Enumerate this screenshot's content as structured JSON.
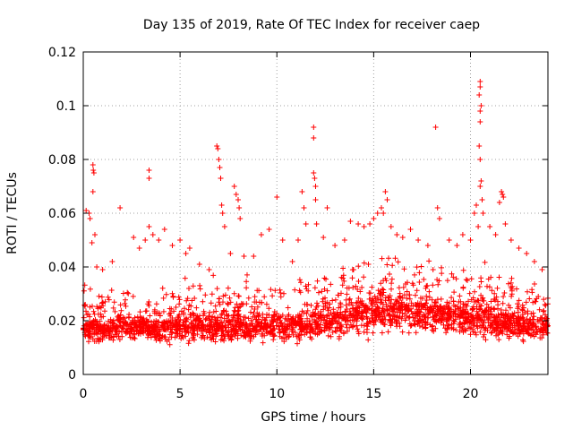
{
  "chart_data": {
    "type": "scatter",
    "title": "Day 135 of 2019, Rate Of TEC Index for receiver caep",
    "xlabel": "GPS time / hours",
    "ylabel": "ROTI / TECUs",
    "xlim": [
      0,
      24
    ],
    "ylim": [
      0,
      0.12
    ],
    "xticks": [
      0,
      5,
      10,
      15,
      20
    ],
    "xtick_labels": [
      "0",
      "5",
      "10",
      "15",
      "20"
    ],
    "yticks": [
      0,
      0.02,
      0.04,
      0.06,
      0.08,
      0.1,
      0.12
    ],
    "ytick_labels": [
      "0",
      "0.02",
      "0.04",
      "0.06",
      "0.08",
      "0.1",
      "0.12"
    ],
    "grid": true,
    "marker": "+",
    "color": "#ff0000",
    "series": [
      {
        "name": "ROTI",
        "points": [
          [
            0.15,
            0.061
          ],
          [
            0.3,
            0.06
          ],
          [
            0.35,
            0.058
          ],
          [
            0.45,
            0.049
          ],
          [
            0.5,
            0.078
          ],
          [
            0.52,
            0.076
          ],
          [
            0.55,
            0.075
          ],
          [
            0.5,
            0.068
          ],
          [
            0.6,
            0.052
          ],
          [
            0.7,
            0.04
          ],
          [
            1.0,
            0.039
          ],
          [
            1.5,
            0.042
          ],
          [
            1.9,
            0.062
          ],
          [
            2.6,
            0.051
          ],
          [
            2.9,
            0.047
          ],
          [
            3.2,
            0.05
          ],
          [
            3.4,
            0.076
          ],
          [
            3.4,
            0.073
          ],
          [
            3.4,
            0.055
          ],
          [
            3.6,
            0.052
          ],
          [
            3.9,
            0.05
          ],
          [
            4.2,
            0.054
          ],
          [
            4.6,
            0.048
          ],
          [
            5.0,
            0.05
          ],
          [
            5.3,
            0.045
          ],
          [
            5.5,
            0.047
          ],
          [
            6.0,
            0.041
          ],
          [
            6.5,
            0.039
          ],
          [
            6.9,
            0.085
          ],
          [
            6.95,
            0.084
          ],
          [
            7.0,
            0.08
          ],
          [
            7.05,
            0.077
          ],
          [
            7.1,
            0.073
          ],
          [
            7.15,
            0.063
          ],
          [
            7.2,
            0.06
          ],
          [
            7.3,
            0.055
          ],
          [
            7.6,
            0.045
          ],
          [
            7.8,
            0.07
          ],
          [
            7.9,
            0.067
          ],
          [
            8.0,
            0.065
          ],
          [
            8.05,
            0.062
          ],
          [
            8.1,
            0.058
          ],
          [
            8.3,
            0.044
          ],
          [
            8.8,
            0.044
          ],
          [
            9.2,
            0.052
          ],
          [
            9.6,
            0.054
          ],
          [
            10.0,
            0.066
          ],
          [
            10.3,
            0.05
          ],
          [
            10.8,
            0.042
          ],
          [
            11.1,
            0.05
          ],
          [
            11.3,
            0.068
          ],
          [
            11.4,
            0.062
          ],
          [
            11.5,
            0.056
          ],
          [
            11.9,
            0.092
          ],
          [
            11.9,
            0.088
          ],
          [
            11.9,
            0.075
          ],
          [
            11.95,
            0.073
          ],
          [
            12.0,
            0.07
          ],
          [
            12.0,
            0.065
          ],
          [
            12.05,
            0.056
          ],
          [
            12.4,
            0.051
          ],
          [
            12.6,
            0.062
          ],
          [
            13.0,
            0.048
          ],
          [
            13.5,
            0.05
          ],
          [
            13.8,
            0.057
          ],
          [
            14.2,
            0.056
          ],
          [
            14.5,
            0.055
          ],
          [
            14.8,
            0.056
          ],
          [
            15.0,
            0.058
          ],
          [
            15.2,
            0.06
          ],
          [
            15.4,
            0.062
          ],
          [
            15.5,
            0.06
          ],
          [
            15.6,
            0.068
          ],
          [
            15.7,
            0.065
          ],
          [
            15.9,
            0.055
          ],
          [
            16.2,
            0.052
          ],
          [
            16.5,
            0.051
          ],
          [
            16.9,
            0.054
          ],
          [
            17.3,
            0.05
          ],
          [
            17.8,
            0.048
          ],
          [
            18.2,
            0.092
          ],
          [
            18.3,
            0.062
          ],
          [
            18.4,
            0.058
          ],
          [
            18.9,
            0.05
          ],
          [
            19.3,
            0.048
          ],
          [
            19.6,
            0.052
          ],
          [
            20.0,
            0.05
          ],
          [
            20.2,
            0.06
          ],
          [
            20.3,
            0.063
          ],
          [
            20.4,
            0.055
          ],
          [
            20.45,
            0.104
          ],
          [
            20.5,
            0.109
          ],
          [
            20.5,
            0.107
          ],
          [
            20.55,
            0.1
          ],
          [
            20.5,
            0.098
          ],
          [
            20.5,
            0.094
          ],
          [
            20.45,
            0.085
          ],
          [
            20.5,
            0.08
          ],
          [
            20.55,
            0.072
          ],
          [
            20.5,
            0.07
          ],
          [
            20.6,
            0.065
          ],
          [
            20.65,
            0.06
          ],
          [
            21.0,
            0.055
          ],
          [
            21.3,
            0.052
          ],
          [
            21.5,
            0.064
          ],
          [
            21.6,
            0.068
          ],
          [
            21.65,
            0.067
          ],
          [
            21.7,
            0.066
          ],
          [
            21.8,
            0.056
          ],
          [
            22.1,
            0.05
          ],
          [
            22.5,
            0.047
          ],
          [
            22.9,
            0.045
          ],
          [
            23.3,
            0.042
          ],
          [
            23.7,
            0.039
          ]
        ],
        "baseline_profile": {
          "hours": [
            0,
            2,
            4,
            6,
            8,
            10,
            12,
            13,
            14,
            15,
            16,
            17,
            18,
            19,
            20,
            21,
            22,
            23,
            24
          ],
          "center": [
            0.017,
            0.017,
            0.017,
            0.018,
            0.018,
            0.018,
            0.019,
            0.02,
            0.022,
            0.023,
            0.023,
            0.023,
            0.023,
            0.022,
            0.021,
            0.02,
            0.019,
            0.018,
            0.018
          ],
          "spread": [
            0.008,
            0.008,
            0.008,
            0.009,
            0.009,
            0.009,
            0.01,
            0.01,
            0.011,
            0.012,
            0.012,
            0.011,
            0.011,
            0.011,
            0.01,
            0.01,
            0.009,
            0.009,
            0.009
          ]
        }
      }
    ]
  }
}
